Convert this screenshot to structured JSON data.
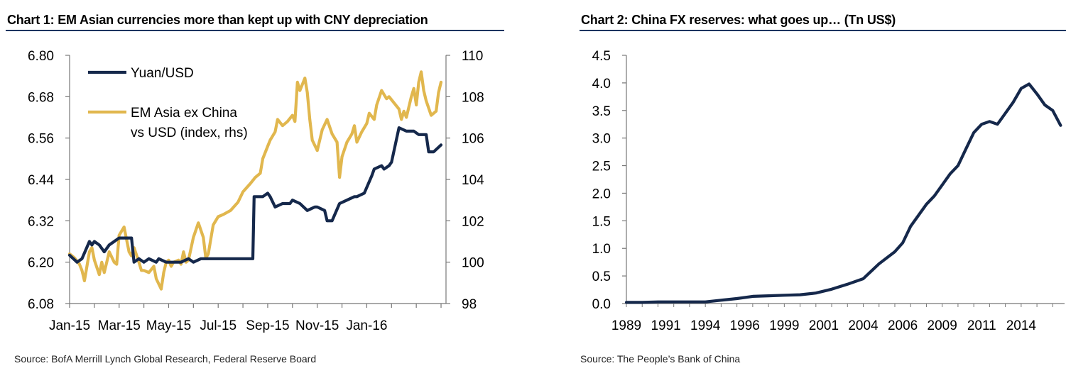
{
  "colors": {
    "navy": "#15284b",
    "gold": "#e1b74e",
    "rule": "#1c3460",
    "axis": "#777777"
  },
  "chart_data": [
    {
      "type": "line",
      "title": "Chart 1: EM Asian currencies more than kept up with CNY depreciation",
      "source": "Source: BofA Merrill Lynch Global Research, Federal Reserve Board",
      "x_range": [
        0,
        15.2
      ],
      "x_unit": "months since Jan-2015",
      "x_tick_labels": [
        "Jan-15",
        "Mar-15",
        "May-15",
        "Jul-15",
        "Sep-15",
        "Nov-15",
        "Jan-16"
      ],
      "x_tick_positions": [
        0,
        2,
        4,
        6,
        8,
        10,
        12
      ],
      "y_left": {
        "range": [
          6.08,
          6.8
        ],
        "ticks": [
          "6.08",
          "6.20",
          "6.32",
          "6.44",
          "6.56",
          "6.68",
          "6.80"
        ]
      },
      "y_right": {
        "range": [
          98,
          110
        ],
        "ticks": [
          "98",
          "100",
          "102",
          "104",
          "106",
          "108",
          "110"
        ]
      },
      "legend": [
        "Yuan/USD",
        "EM Asia ex China",
        "vs USD (index, rhs)"
      ],
      "legend_position": "top-left",
      "series": [
        {
          "name": "Yuan/USD",
          "axis": "left",
          "color": "#15284b",
          "x": [
            0,
            0.3,
            0.5,
            0.8,
            0.9,
            1.0,
            1.2,
            1.4,
            1.6,
            1.8,
            2.0,
            2.2,
            2.5,
            2.6,
            2.8,
            3.0,
            3.2,
            3.5,
            3.6,
            3.9,
            4.0,
            4.2,
            4.5,
            4.8,
            5.0,
            5.3,
            5.6,
            5.9,
            6.0,
            6.2,
            6.5,
            6.8,
            7.0,
            7.3,
            7.4,
            7.45,
            7.6,
            7.8,
            8.0,
            8.1,
            8.3,
            8.6,
            8.9,
            9.0,
            9.3,
            9.6,
            9.9,
            10.0,
            10.3,
            10.4,
            10.6,
            10.9,
            11.2,
            11.5,
            11.6,
            11.9,
            12.2,
            12.3,
            12.6,
            12.7,
            12.9,
            13.0,
            13.3,
            13.6,
            13.9,
            14.1,
            14.4,
            14.5,
            14.7,
            15.0
          ],
          "values": [
            6.22,
            6.2,
            6.21,
            6.26,
            6.25,
            6.26,
            6.25,
            6.23,
            6.25,
            6.26,
            6.27,
            6.27,
            6.27,
            6.2,
            6.21,
            6.2,
            6.21,
            6.2,
            6.21,
            6.2,
            6.2,
            6.2,
            6.2,
            6.21,
            6.2,
            6.21,
            6.21,
            6.21,
            6.21,
            6.21,
            6.21,
            6.21,
            6.21,
            6.21,
            6.21,
            6.39,
            6.39,
            6.39,
            6.4,
            6.39,
            6.36,
            6.37,
            6.37,
            6.38,
            6.37,
            6.35,
            6.36,
            6.36,
            6.35,
            6.32,
            6.32,
            6.37,
            6.38,
            6.39,
            6.39,
            6.4,
            6.45,
            6.47,
            6.48,
            6.47,
            6.48,
            6.49,
            6.59,
            6.58,
            6.58,
            6.57,
            6.57,
            6.52,
            6.52,
            6.54
          ]
        },
        {
          "name": "EM Asia ex China vs USD (index, rhs)",
          "axis": "right",
          "color": "#e1b74e",
          "x": [
            0,
            0.2,
            0.4,
            0.5,
            0.6,
            0.8,
            0.9,
            1.0,
            1.2,
            1.3,
            1.4,
            1.6,
            1.8,
            1.9,
            2.0,
            2.2,
            2.3,
            2.4,
            2.5,
            2.6,
            2.8,
            2.9,
            3.0,
            3.2,
            3.4,
            3.5,
            3.7,
            3.8,
            3.9,
            4.0,
            4.1,
            4.2,
            4.4,
            4.5,
            4.6,
            4.7,
            4.8,
            5.0,
            5.2,
            5.4,
            5.5,
            5.6,
            5.8,
            6.0,
            6.2,
            6.5,
            6.8,
            7.0,
            7.3,
            7.5,
            7.7,
            7.8,
            8.0,
            8.1,
            8.3,
            8.4,
            8.6,
            8.8,
            9.0,
            9.1,
            9.2,
            9.3,
            9.5,
            9.6,
            9.7,
            9.8,
            10.0,
            10.2,
            10.4,
            10.6,
            10.8,
            10.9,
            11.0,
            11.2,
            11.4,
            11.5,
            11.6,
            11.8,
            12.0,
            12.1,
            12.3,
            12.4,
            12.6,
            12.7,
            12.8,
            12.9,
            13.1,
            13.3,
            13.4,
            13.5,
            13.6,
            13.8,
            13.9,
            14.0,
            14.1,
            14.2,
            14.3,
            14.4,
            14.6,
            14.8,
            14.9,
            15.0
          ],
          "values": [
            100.4,
            100.2,
            99.9,
            99.6,
            99.1,
            100.5,
            100.7,
            100.1,
            99.4,
            100.0,
            99.5,
            100.5,
            100.0,
            99.9,
            101.3,
            101.7,
            101.1,
            100.5,
            100.3,
            100.7,
            100.0,
            99.6,
            99.6,
            99.5,
            99.8,
            99.2,
            98.7,
            99.5,
            100.0,
            100.1,
            99.8,
            100.0,
            100.1,
            99.9,
            100.5,
            100.0,
            100.1,
            101.2,
            101.9,
            101.2,
            100.2,
            100.4,
            101.8,
            102.2,
            102.3,
            102.5,
            102.9,
            103.4,
            103.8,
            104.1,
            104.3,
            105.0,
            105.6,
            105.9,
            106.3,
            106.9,
            106.6,
            106.8,
            107.1,
            106.8,
            108.7,
            108.3,
            108.9,
            108.2,
            106.9,
            105.9,
            105.4,
            106.4,
            106.9,
            106.2,
            105.8,
            104.1,
            105.1,
            105.8,
            106.2,
            106.6,
            105.8,
            106.3,
            106.7,
            107.2,
            106.9,
            107.6,
            108.3,
            108.1,
            107.9,
            108.0,
            107.7,
            107.4,
            106.9,
            107.3,
            107.0,
            108.0,
            108.4,
            107.6,
            108.7,
            109.2,
            108.3,
            107.8,
            107.1,
            107.3,
            108.2,
            108.7
          ]
        }
      ]
    },
    {
      "type": "line",
      "title": "Chart 2: China FX reserves: what goes up… (Tn US$)",
      "source": "Source: The People’s Bank of China",
      "x_range": [
        1989,
        2016.75
      ],
      "x_tick_labels": [
        "1989",
        "1991",
        "1994",
        "1996",
        "1999",
        "2001",
        "2004",
        "2006",
        "2009",
        "2011",
        "2014"
      ],
      "x_tick_positions": [
        1989,
        1991.5,
        1994,
        1996.5,
        1999,
        2001.5,
        2004,
        2006.5,
        2009,
        2011.5,
        2014
      ],
      "y": {
        "range": [
          0,
          4.5
        ],
        "ticks": [
          "0.0",
          "0.5",
          "1.0",
          "1.5",
          "2.0",
          "2.5",
          "3.0",
          "3.5",
          "4.0",
          "4.5"
        ]
      },
      "series": [
        {
          "name": "China FX reserves",
          "color": "#15284b",
          "x": [
            1989,
            1990,
            1991,
            1992,
            1993,
            1994,
            1995,
            1996,
            1997,
            1998,
            1999,
            2000,
            2001,
            2002,
            2003,
            2004,
            2005,
            2006,
            2006.5,
            2007,
            2007.5,
            2008,
            2008.5,
            2009,
            2009.5,
            2010,
            2010.5,
            2011,
            2011.5,
            2012,
            2012.5,
            2013,
            2013.5,
            2014,
            2014.5,
            2015,
            2015.5,
            2016,
            2016.5
          ],
          "values": [
            0.02,
            0.02,
            0.03,
            0.03,
            0.03,
            0.03,
            0.06,
            0.09,
            0.13,
            0.14,
            0.15,
            0.16,
            0.19,
            0.26,
            0.35,
            0.45,
            0.72,
            0.94,
            1.1,
            1.4,
            1.6,
            1.8,
            1.95,
            2.15,
            2.35,
            2.5,
            2.8,
            3.1,
            3.25,
            3.3,
            3.25,
            3.45,
            3.65,
            3.9,
            3.98,
            3.8,
            3.6,
            3.5,
            3.23
          ]
        }
      ]
    }
  ]
}
